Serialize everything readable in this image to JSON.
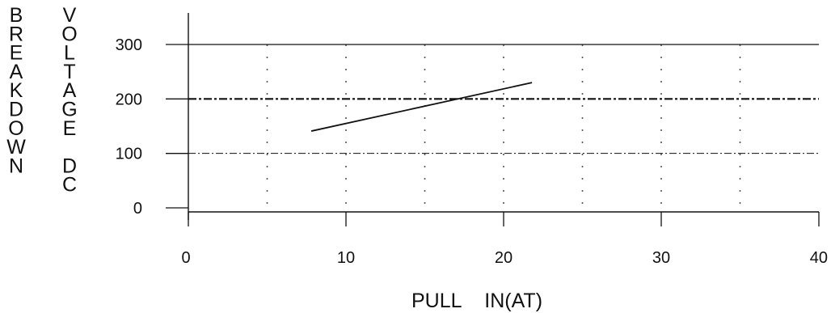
{
  "chart_data": {
    "type": "line",
    "title": "",
    "xlabel": "PULL IN(AT)",
    "ylabel": "BREAKDOWN VOLTAGE DC",
    "ylabel_columns": [
      [
        "B",
        "R",
        "E",
        "A",
        "K",
        "D",
        "O",
        "W",
        "N"
      ],
      [
        "V",
        "O",
        "L",
        "T",
        "A",
        "G",
        "E",
        "",
        "D",
        "C"
      ]
    ],
    "xlim": [
      0,
      40
    ],
    "ylim": [
      0,
      300
    ],
    "xticks": [
      0,
      10,
      20,
      30,
      40
    ],
    "yticks": [
      0,
      100,
      200,
      300
    ],
    "xtick_labels": [
      "0",
      "10",
      "20",
      "30",
      "40"
    ],
    "ytick_labels": [
      "0",
      "100",
      "200",
      "300"
    ],
    "grid": {
      "vertical_dotted_at": [
        5,
        10,
        15,
        20,
        25,
        30,
        35
      ],
      "horizontal_solid_at": [
        300
      ],
      "horizontal_dashdot_thin_at": [
        100
      ],
      "horizontal_dashdot_thick_at": [
        200
      ]
    },
    "series": [
      {
        "x": [
          7.8,
          21.8
        ],
        "y": [
          141,
          230
        ]
      }
    ],
    "colors": {
      "line": "#111111",
      "axis": "#111111",
      "grid": "#555555"
    }
  }
}
